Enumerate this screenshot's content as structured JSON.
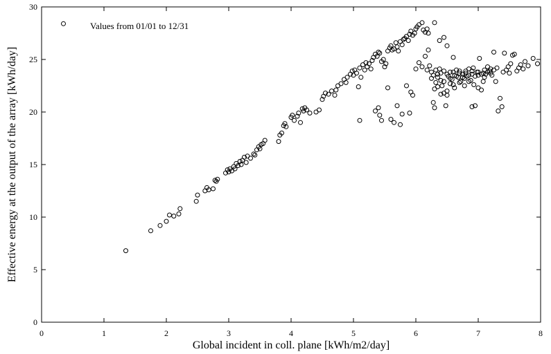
{
  "chart_data": {
    "type": "scatter",
    "annotation": "Values from 01/01 to 12/31",
    "xlabel": "Global incident in coll. plane [kWh/m2/day]",
    "ylabel": "Effective energy at the output of the array [kWh/day]",
    "xlim": [
      0,
      8
    ],
    "ylim": [
      0,
      30
    ],
    "xticks": [
      "0",
      "1",
      "2",
      "3",
      "4",
      "5",
      "6",
      "7",
      "8"
    ],
    "yticks": [
      "0",
      "5",
      "10",
      "15",
      "20",
      "25",
      "30"
    ],
    "grid": false,
    "marker": "open-circle",
    "marker_color": "#000000",
    "points": [
      [
        0.35,
        28.4
      ],
      [
        1.35,
        6.8
      ],
      [
        1.75,
        8.7
      ],
      [
        1.9,
        9.2
      ],
      [
        2.0,
        9.6
      ],
      [
        2.05,
        10.2
      ],
      [
        2.12,
        10.1
      ],
      [
        2.2,
        10.3
      ],
      [
        2.22,
        10.8
      ],
      [
        2.48,
        11.5
      ],
      [
        2.5,
        12.1
      ],
      [
        2.62,
        12.5
      ],
      [
        2.65,
        12.8
      ],
      [
        2.68,
        12.6
      ],
      [
        2.75,
        12.7
      ],
      [
        2.78,
        13.5
      ],
      [
        2.82,
        13.6
      ],
      [
        2.8,
        13.4
      ],
      [
        2.95,
        14.2
      ],
      [
        2.98,
        14.5
      ],
      [
        3.0,
        14.3
      ],
      [
        3.02,
        14.6
      ],
      [
        3.05,
        14.4
      ],
      [
        3.08,
        14.8
      ],
      [
        3.1,
        14.6
      ],
      [
        3.12,
        15.1
      ],
      [
        3.15,
        14.9
      ],
      [
        3.18,
        15.3
      ],
      [
        3.2,
        15.0
      ],
      [
        3.22,
        15.4
      ],
      [
        3.25,
        15.7
      ],
      [
        3.28,
        15.2
      ],
      [
        3.3,
        15.8
      ],
      [
        3.35,
        15.6
      ],
      [
        3.4,
        16.0
      ],
      [
        3.42,
        15.9
      ],
      [
        3.45,
        16.4
      ],
      [
        3.48,
        16.7
      ],
      [
        3.5,
        16.5
      ],
      [
        3.52,
        16.9
      ],
      [
        3.55,
        17.0
      ],
      [
        3.58,
        17.3
      ],
      [
        3.8,
        17.2
      ],
      [
        3.82,
        17.8
      ],
      [
        3.85,
        18.0
      ],
      [
        3.88,
        18.7
      ],
      [
        3.9,
        18.9
      ],
      [
        3.92,
        18.6
      ],
      [
        4.0,
        19.5
      ],
      [
        4.02,
        19.7
      ],
      [
        4.05,
        19.2
      ],
      [
        4.1,
        19.6
      ],
      [
        4.12,
        19.9
      ],
      [
        4.15,
        19.0
      ],
      [
        4.18,
        20.3
      ],
      [
        4.2,
        20.1
      ],
      [
        4.22,
        20.4
      ],
      [
        4.25,
        20.2
      ],
      [
        4.3,
        19.9
      ],
      [
        4.4,
        20.0
      ],
      [
        4.45,
        20.2
      ],
      [
        4.5,
        21.2
      ],
      [
        4.52,
        21.5
      ],
      [
        4.55,
        21.8
      ],
      [
        4.6,
        21.7
      ],
      [
        4.65,
        22.0
      ],
      [
        4.7,
        21.6
      ],
      [
        4.72,
        22.1
      ],
      [
        4.75,
        22.5
      ],
      [
        4.8,
        22.7
      ],
      [
        4.85,
        23.1
      ],
      [
        4.88,
        22.8
      ],
      [
        4.9,
        23.3
      ],
      [
        4.95,
        23.6
      ],
      [
        4.98,
        23.9
      ],
      [
        5.0,
        23.5
      ],
      [
        5.02,
        24.0
      ],
      [
        5.05,
        23.7
      ],
      [
        5.08,
        22.4
      ],
      [
        5.1,
        24.2
      ],
      [
        5.12,
        23.3
      ],
      [
        5.15,
        24.5
      ],
      [
        5.18,
        24.0
      ],
      [
        5.2,
        24.7
      ],
      [
        5.22,
        24.3
      ],
      [
        5.25,
        24.6
      ],
      [
        5.28,
        24.1
      ],
      [
        5.3,
        24.9
      ],
      [
        5.32,
        25.2
      ],
      [
        5.35,
        25.5
      ],
      [
        5.38,
        25.3
      ],
      [
        5.4,
        25.7
      ],
      [
        5.42,
        25.6
      ],
      [
        5.45,
        24.8
      ],
      [
        5.48,
        25.0
      ],
      [
        5.5,
        24.3
      ],
      [
        5.52,
        24.6
      ],
      [
        5.55,
        25.8
      ],
      [
        5.58,
        26.1
      ],
      [
        5.6,
        26.3
      ],
      [
        5.62,
        25.9
      ],
      [
        5.65,
        26.0
      ],
      [
        5.68,
        26.6
      ],
      [
        5.7,
        26.2
      ],
      [
        5.72,
        25.8
      ],
      [
        5.75,
        26.7
      ],
      [
        5.78,
        26.4
      ],
      [
        5.8,
        26.9
      ],
      [
        5.82,
        27.0
      ],
      [
        5.85,
        27.2
      ],
      [
        5.88,
        26.8
      ],
      [
        5.9,
        27.4
      ],
      [
        5.92,
        27.7
      ],
      [
        5.95,
        27.3
      ],
      [
        5.98,
        27.5
      ],
      [
        6.0,
        27.9
      ],
      [
        6.02,
        28.1
      ],
      [
        6.05,
        28.3
      ],
      [
        6.1,
        28.5
      ],
      [
        6.12,
        27.8
      ],
      [
        6.15,
        27.6
      ],
      [
        6.18,
        27.9
      ],
      [
        6.2,
        27.5
      ],
      [
        6.3,
        28.5
      ],
      [
        6.38,
        26.8
      ],
      [
        6.45,
        27.1
      ],
      [
        5.1,
        19.2
      ],
      [
        5.35,
        20.1
      ],
      [
        5.4,
        20.4
      ],
      [
        5.42,
        19.7
      ],
      [
        5.45,
        19.2
      ],
      [
        5.55,
        22.3
      ],
      [
        5.6,
        19.3
      ],
      [
        5.65,
        19.0
      ],
      [
        5.7,
        20.6
      ],
      [
        5.75,
        18.8
      ],
      [
        5.78,
        19.8
      ],
      [
        5.85,
        22.5
      ],
      [
        5.9,
        19.9
      ],
      [
        5.92,
        21.9
      ],
      [
        5.95,
        21.6
      ],
      [
        6.0,
        24.1
      ],
      [
        6.05,
        24.7
      ],
      [
        6.1,
        24.3
      ],
      [
        6.15,
        25.3
      ],
      [
        6.18,
        24.0
      ],
      [
        6.2,
        25.9
      ],
      [
        6.22,
        24.4
      ],
      [
        6.25,
        23.2
      ],
      [
        6.28,
        20.9
      ],
      [
        6.3,
        20.4
      ],
      [
        6.32,
        22.8
      ],
      [
        6.35,
        23.6
      ],
      [
        6.38,
        24.1
      ],
      [
        6.4,
        23.0
      ],
      [
        6.42,
        22.5
      ],
      [
        6.45,
        21.8
      ],
      [
        6.48,
        20.6
      ],
      [
        6.5,
        22.0
      ],
      [
        6.52,
        23.4
      ],
      [
        6.55,
        23.8
      ],
      [
        6.58,
        23.1
      ],
      [
        6.6,
        22.6
      ],
      [
        6.62,
        23.5
      ],
      [
        6.65,
        24.0
      ],
      [
        6.68,
        23.3
      ],
      [
        6.7,
        23.7
      ],
      [
        6.72,
        22.9
      ],
      [
        6.75,
        23.6
      ],
      [
        6.78,
        23.2
      ],
      [
        6.8,
        23.9
      ],
      [
        6.82,
        23.4
      ],
      [
        6.85,
        24.1
      ],
      [
        6.88,
        23.0
      ],
      [
        6.9,
        23.6
      ],
      [
        6.92,
        24.2
      ],
      [
        6.95,
        20.6
      ],
      [
        6.98,
        23.8
      ],
      [
        7.0,
        23.5
      ],
      [
        7.02,
        25.1
      ],
      [
        7.05,
        22.1
      ],
      [
        7.08,
        23.7
      ],
      [
        7.1,
        24.0
      ],
      [
        7.12,
        23.6
      ],
      [
        7.15,
        24.3
      ],
      [
        7.18,
        23.9
      ],
      [
        7.2,
        24.1
      ],
      [
        7.22,
        23.5
      ],
      [
        7.25,
        25.7
      ],
      [
        7.28,
        22.9
      ],
      [
        7.3,
        24.2
      ],
      [
        7.32,
        20.1
      ],
      [
        7.35,
        21.3
      ],
      [
        7.38,
        20.5
      ],
      [
        7.4,
        23.8
      ],
      [
        7.42,
        25.6
      ],
      [
        7.45,
        24.0
      ],
      [
        7.48,
        24.3
      ],
      [
        7.5,
        23.7
      ],
      [
        7.52,
        24.6
      ],
      [
        7.55,
        25.4
      ],
      [
        7.58,
        25.5
      ],
      [
        7.62,
        23.9
      ],
      [
        7.65,
        24.2
      ],
      [
        7.68,
        24.5
      ],
      [
        7.72,
        24.1
      ],
      [
        7.75,
        24.8
      ],
      [
        7.8,
        24.4
      ],
      [
        7.88,
        25.1
      ],
      [
        7.95,
        24.6
      ],
      [
        6.25,
        23.8
      ],
      [
        6.28,
        23.5
      ],
      [
        6.32,
        24.0
      ],
      [
        6.35,
        23.3
      ],
      [
        6.4,
        23.7
      ],
      [
        6.45,
        23.9
      ],
      [
        6.5,
        23.6
      ],
      [
        6.55,
        23.2
      ],
      [
        6.6,
        23.8
      ],
      [
        6.65,
        23.4
      ],
      [
        6.7,
        23.9
      ],
      [
        6.75,
        23.3
      ],
      [
        6.8,
        23.7
      ],
      [
        6.85,
        23.5
      ],
      [
        6.9,
        23.9
      ],
      [
        6.95,
        23.4
      ],
      [
        7.0,
        23.8
      ],
      [
        7.05,
        23.6
      ],
      [
        7.1,
        23.3
      ],
      [
        7.15,
        23.8
      ],
      [
        7.2,
        23.7
      ],
      [
        7.25,
        24.0
      ],
      [
        6.3,
        22.2
      ],
      [
        6.35,
        22.4
      ],
      [
        6.4,
        21.7
      ],
      [
        6.45,
        22.9
      ],
      [
        6.5,
        21.6
      ],
      [
        6.55,
        22.7
      ],
      [
        6.62,
        22.3
      ],
      [
        6.7,
        22.8
      ],
      [
        6.78,
        22.5
      ],
      [
        6.85,
        22.9
      ],
      [
        6.93,
        22.6
      ],
      [
        7.0,
        22.3
      ],
      [
        7.08,
        22.9
      ],
      [
        6.6,
        25.2
      ],
      [
        6.9,
        20.5
      ],
      [
        6.5,
        26.3
      ]
    ]
  }
}
